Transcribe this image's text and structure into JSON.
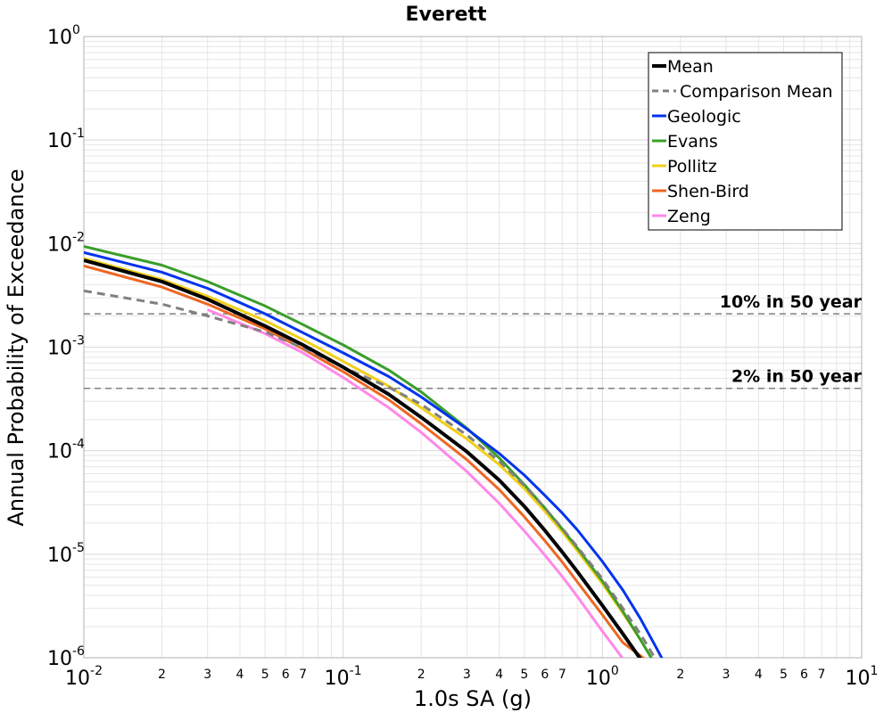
{
  "chart_data": {
    "type": "line",
    "title": "Everett",
    "xlabel": "1.0s SA (g)",
    "ylabel": "Annual Probability of Exceedance",
    "x_scale": "log",
    "y_scale": "log",
    "xlim": [
      0.01,
      10
    ],
    "ylim": [
      1e-06,
      1
    ],
    "grid": true,
    "legend_position": "top-right",
    "x_major_ticks": [
      {
        "base": "10",
        "exp": "-2",
        "value": 0.01
      },
      {
        "base": "10",
        "exp": "-1",
        "value": 0.1
      },
      {
        "base": "10",
        "exp": "0",
        "value": 1
      },
      {
        "base": "10",
        "exp": "1",
        "value": 10
      }
    ],
    "x_minor_tick_labels": [
      "2",
      "3",
      "4",
      "5",
      "6",
      "7"
    ],
    "y_major_ticks": [
      {
        "base": "10",
        "exp": "0",
        "value": 1
      },
      {
        "base": "10",
        "exp": "-1",
        "value": 0.1
      },
      {
        "base": "10",
        "exp": "-2",
        "value": 0.01
      },
      {
        "base": "10",
        "exp": "-3",
        "value": 0.001
      },
      {
        "base": "10",
        "exp": "-4",
        "value": 0.0001
      },
      {
        "base": "10",
        "exp": "-5",
        "value": 1e-05
      },
      {
        "base": "10",
        "exp": "-6",
        "value": 1e-06
      }
    ],
    "reference_lines": [
      {
        "label": "10% in 50 year",
        "y": 0.0021,
        "color": "#808080"
      },
      {
        "label": "2% in 50 year",
        "y": 0.0004,
        "color": "#808080"
      }
    ],
    "series": [
      {
        "name": "Mean",
        "color": "#000000",
        "dash": "solid",
        "width": 4,
        "points": [
          [
            0.01,
            0.0069
          ],
          [
            0.02,
            0.0043
          ],
          [
            0.03,
            0.0029
          ],
          [
            0.05,
            0.0016
          ],
          [
            0.07,
            0.00105
          ],
          [
            0.1,
            0.00064
          ],
          [
            0.15,
            0.00035
          ],
          [
            0.2,
            0.00021
          ],
          [
            0.3,
            9.8e-05
          ],
          [
            0.4,
            5.2e-05
          ],
          [
            0.5,
            2.9e-05
          ],
          [
            0.6,
            1.7e-05
          ],
          [
            0.7,
            1.05e-05
          ],
          [
            0.8,
            6.8e-06
          ],
          [
            1.0,
            3.2e-06
          ],
          [
            1.2,
            1.7e-06
          ],
          [
            1.4,
            9.8e-07
          ],
          [
            1.5,
            7e-07
          ]
        ]
      },
      {
        "name": "Comparison Mean",
        "color": "#808080",
        "dash": "dashed",
        "width": 3,
        "points": [
          [
            0.01,
            0.0035
          ],
          [
            0.02,
            0.0026
          ],
          [
            0.03,
            0.002
          ],
          [
            0.05,
            0.0014
          ],
          [
            0.07,
            0.00098
          ],
          [
            0.1,
            0.00064
          ],
          [
            0.15,
            0.00041
          ],
          [
            0.2,
            0.00028
          ],
          [
            0.3,
            0.000142
          ],
          [
            0.4,
            7.9e-05
          ],
          [
            0.5,
            4.6e-05
          ],
          [
            0.6,
            2.8e-05
          ],
          [
            0.7,
            1.78e-05
          ],
          [
            0.8,
            1.18e-05
          ],
          [
            1.0,
            5.8e-06
          ],
          [
            1.2,
            3e-06
          ],
          [
            1.4,
            1.7e-06
          ],
          [
            1.6,
            9.8e-07
          ]
        ]
      },
      {
        "name": "Geologic",
        "color": "#0033ee",
        "dash": "solid",
        "width": 3,
        "points": [
          [
            0.01,
            0.0082
          ],
          [
            0.02,
            0.0053
          ],
          [
            0.03,
            0.0037
          ],
          [
            0.05,
            0.0021
          ],
          [
            0.07,
            0.00138
          ],
          [
            0.1,
            0.00088
          ],
          [
            0.15,
            0.00052
          ],
          [
            0.2,
            0.00033
          ],
          [
            0.3,
            0.000162
          ],
          [
            0.4,
            9.4e-05
          ],
          [
            0.5,
            5.8e-05
          ],
          [
            0.6,
            3.7e-05
          ],
          [
            0.7,
            2.5e-05
          ],
          [
            0.8,
            1.72e-05
          ],
          [
            1.0,
            8.5e-06
          ],
          [
            1.2,
            4.5e-06
          ],
          [
            1.4,
            2.4e-06
          ],
          [
            1.6,
            1.3e-06
          ],
          [
            1.7,
            9.8e-07
          ]
        ]
      },
      {
        "name": "Evans",
        "color": "#3a9e2a",
        "dash": "solid",
        "width": 3,
        "points": [
          [
            0.01,
            0.0094
          ],
          [
            0.02,
            0.0062
          ],
          [
            0.03,
            0.0043
          ],
          [
            0.05,
            0.0025
          ],
          [
            0.07,
            0.00165
          ],
          [
            0.1,
            0.00105
          ],
          [
            0.15,
            0.0006
          ],
          [
            0.2,
            0.00037
          ],
          [
            0.3,
            0.000165
          ],
          [
            0.4,
            8.5e-05
          ],
          [
            0.5,
            4.7e-05
          ],
          [
            0.6,
            2.8e-05
          ],
          [
            0.7,
            1.75e-05
          ],
          [
            0.8,
            1.15e-05
          ],
          [
            1.0,
            5.5e-06
          ],
          [
            1.2,
            2.8e-06
          ],
          [
            1.4,
            1.5e-06
          ],
          [
            1.55,
            9.8e-07
          ]
        ]
      },
      {
        "name": "Pollitz",
        "color": "#f2d01a",
        "dash": "solid",
        "width": 3,
        "points": [
          [
            0.01,
            0.0072
          ],
          [
            0.02,
            0.0045
          ],
          [
            0.03,
            0.0031
          ],
          [
            0.05,
            0.0018
          ],
          [
            0.07,
            0.00118
          ],
          [
            0.1,
            0.00073
          ],
          [
            0.15,
            0.00042
          ],
          [
            0.2,
            0.00026
          ],
          [
            0.3,
            0.00013
          ],
          [
            0.4,
            7.3e-05
          ],
          [
            0.5,
            4.3e-05
          ],
          [
            0.6,
            2.6e-05
          ],
          [
            0.7,
            1.65e-05
          ],
          [
            0.8,
            1.08e-05
          ],
          [
            1.0,
            5.2e-06
          ],
          [
            1.2,
            2.7e-06
          ],
          [
            1.4,
            1.5e-06
          ],
          [
            1.55,
            9.8e-07
          ]
        ]
      },
      {
        "name": "Shen-Bird",
        "color": "#ee6622",
        "dash": "solid",
        "width": 3,
        "points": [
          [
            0.01,
            0.0061
          ],
          [
            0.02,
            0.0038
          ],
          [
            0.03,
            0.0026
          ],
          [
            0.05,
            0.0015
          ],
          [
            0.07,
            0.00096
          ],
          [
            0.1,
            0.00058
          ],
          [
            0.15,
            0.00031
          ],
          [
            0.2,
            0.000182
          ],
          [
            0.3,
            8.2e-05
          ],
          [
            0.4,
            4.2e-05
          ],
          [
            0.5,
            2.3e-05
          ],
          [
            0.6,
            1.35e-05
          ],
          [
            0.7,
            8.4e-06
          ],
          [
            0.8,
            5.4e-06
          ],
          [
            1.0,
            2.6e-06
          ],
          [
            1.2,
            1.4e-06
          ],
          [
            1.45,
            9.8e-07
          ]
        ]
      },
      {
        "name": "Zeng",
        "color": "#ff88e8",
        "dash": "solid",
        "width": 3,
        "points": [
          [
            0.03,
            0.0023
          ],
          [
            0.05,
            0.00135
          ],
          [
            0.07,
            0.00088
          ],
          [
            0.1,
            0.00051
          ],
          [
            0.15,
            0.00026
          ],
          [
            0.2,
            0.00015
          ],
          [
            0.3,
            6.3e-05
          ],
          [
            0.4,
            3.1e-05
          ],
          [
            0.5,
            1.68e-05
          ],
          [
            0.6,
            9.8e-06
          ],
          [
            0.7,
            6.1e-06
          ],
          [
            0.8,
            3.9e-06
          ],
          [
            1.0,
            1.8e-06
          ],
          [
            1.2,
            9.8e-07
          ]
        ]
      }
    ]
  }
}
